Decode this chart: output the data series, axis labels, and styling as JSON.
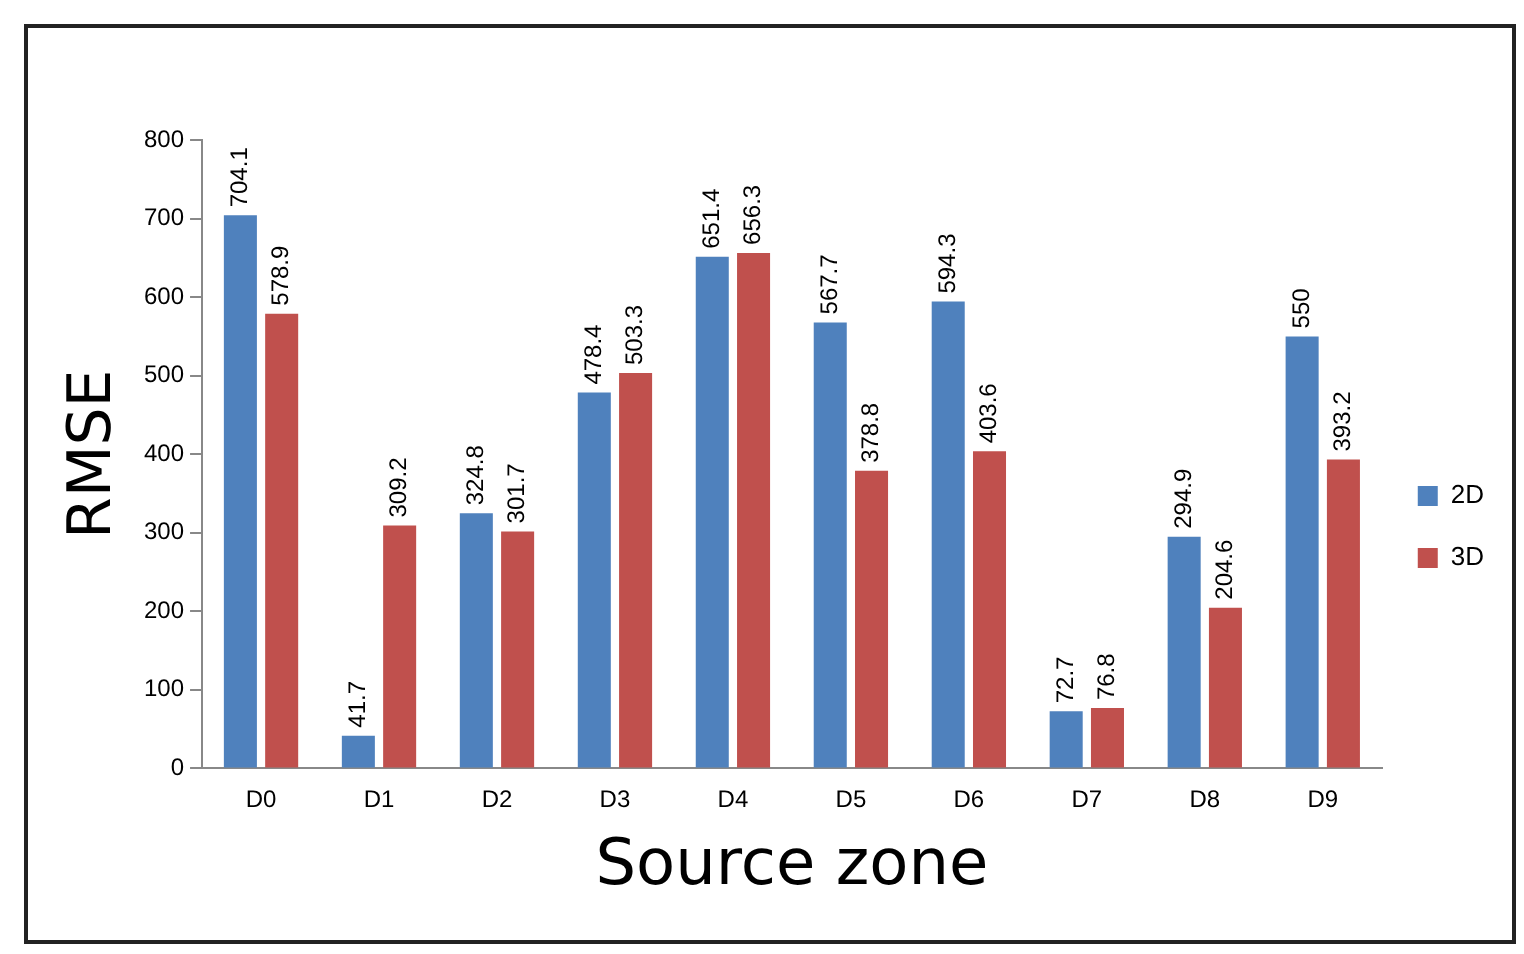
{
  "chart_data": {
    "type": "bar",
    "xlabel": "Source zone",
    "ylabel": "RMSE",
    "categories": [
      "D0",
      "D1",
      "D2",
      "D3",
      "D4",
      "D5",
      "D6",
      "D7",
      "D8",
      "D9"
    ],
    "series": [
      {
        "name": "2D",
        "color": "#4f81bd",
        "values": [
          704.1,
          41.7,
          324.8,
          478.4,
          651.4,
          567.7,
          594.3,
          72.7,
          294.9,
          550
        ]
      },
      {
        "name": "3D",
        "color": "#c0504d",
        "values": [
          578.9,
          309.2,
          301.7,
          503.3,
          656.3,
          378.8,
          403.6,
          76.8,
          204.6,
          393.2
        ]
      }
    ],
    "ylim": [
      0,
      800
    ],
    "yticks": [
      0,
      100,
      200,
      300,
      400,
      500,
      600,
      700,
      800
    ],
    "grid": false,
    "legend": "right",
    "data_labels": true
  }
}
